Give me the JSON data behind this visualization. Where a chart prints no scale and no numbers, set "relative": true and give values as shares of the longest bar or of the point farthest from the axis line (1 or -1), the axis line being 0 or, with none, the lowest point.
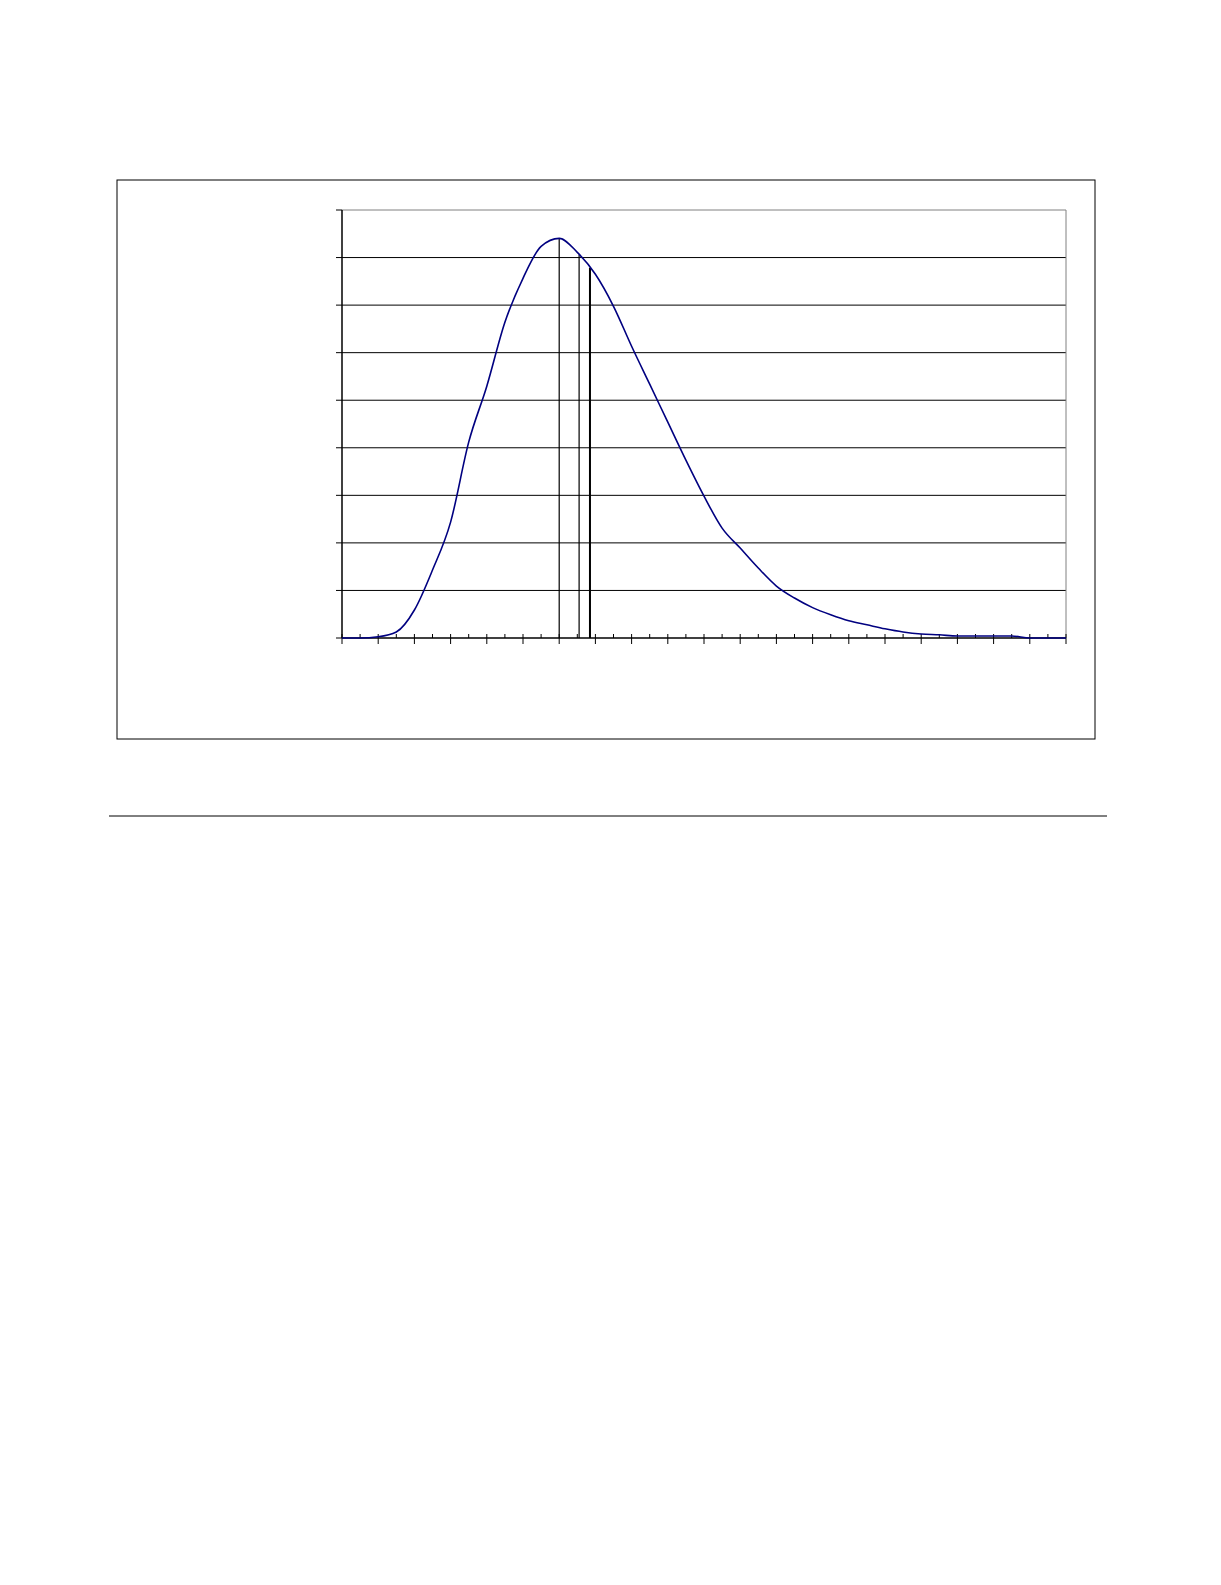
{
  "chart_data": {
    "type": "line",
    "relative": true,
    "grid": "y",
    "marker": "none",
    "line_style": "solid",
    "categories": [
      null,
      null,
      null,
      null,
      null,
      null,
      null,
      null,
      null,
      null,
      null,
      null,
      null,
      null,
      null,
      null,
      null,
      null,
      null,
      null,
      null,
      null,
      null,
      null,
      null,
      null,
      null,
      null,
      null,
      null,
      null,
      null,
      null,
      null,
      null,
      null,
      null,
      null,
      null,
      null,
      null
    ],
    "series": [
      {
        "color": "#000080",
        "values": [
          0,
          0,
          0.003,
          0.015,
          0.07,
          0.17,
          0.29,
          0.49,
          0.63,
          0.79,
          0.9,
          0.98,
          1,
          0.965,
          0.91,
          0.83,
          0.73,
          0.635,
          0.54,
          0.445,
          0.355,
          0.275,
          0.225,
          0.175,
          0.13,
          0.1,
          0.076,
          0.058,
          0.043,
          0.033,
          0.023,
          0.015,
          0.01,
          0.008,
          0.005,
          0.005,
          0.005,
          0.005,
          0,
          0,
          0
        ]
      }
    ]
  }
}
